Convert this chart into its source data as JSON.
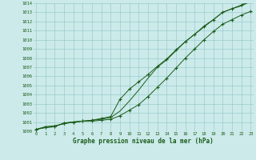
{
  "x": [
    0,
    1,
    2,
    3,
    4,
    5,
    6,
    7,
    8,
    9,
    10,
    11,
    12,
    13,
    14,
    15,
    16,
    17,
    18,
    19,
    20,
    21,
    22,
    23
  ],
  "line_upper": [
    1000.2,
    1000.5,
    1000.6,
    1000.8,
    1001.0,
    1001.1,
    1001.2,
    1001.3,
    1001.5,
    1002.2,
    1003.3,
    1004.5,
    1005.8,
    1007.0,
    1007.8,
    1008.8,
    1009.8,
    1010.6,
    1011.4,
    1012.2,
    1013.0,
    1013.4,
    1013.7,
    1014.2
  ],
  "line_mid": [
    1000.2,
    1000.4,
    1000.5,
    1000.9,
    1001.0,
    1001.1,
    1001.1,
    1001.2,
    1001.3,
    1001.7,
    1002.3,
    1002.9,
    1003.8,
    1004.8,
    1005.8,
    1006.9,
    1008.0,
    1009.0,
    1010.0,
    1010.9,
    1011.7,
    1012.2,
    1012.7,
    1013.1
  ],
  "line_lower": [
    1000.2,
    1000.4,
    1000.5,
    1000.9,
    1001.0,
    1001.1,
    1001.2,
    1001.4,
    1001.6,
    1003.5,
    1004.6,
    1005.4,
    1006.2,
    1007.1,
    1007.9,
    1008.9,
    1009.8,
    1010.6,
    1011.5,
    1012.2,
    1013.0,
    1013.4,
    1013.8,
    1014.3
  ],
  "ylim": [
    1000,
    1014
  ],
  "yticks": [
    1000,
    1001,
    1002,
    1003,
    1004,
    1005,
    1006,
    1007,
    1008,
    1009,
    1010,
    1011,
    1012,
    1013,
    1014
  ],
  "xticks": [
    0,
    1,
    2,
    3,
    4,
    5,
    6,
    7,
    8,
    9,
    10,
    11,
    12,
    13,
    14,
    15,
    16,
    17,
    18,
    19,
    20,
    21,
    22,
    23
  ],
  "line_color": "#1a5c1a",
  "bg_plot": "#cceaea",
  "bg_fig": "#cceaea",
  "grid_color": "#99cccc",
  "xlabel": "Graphe pression niveau de la mer (hPa)",
  "xlabel_color": "#1a5c1a",
  "tick_color": "#1a5c1a"
}
